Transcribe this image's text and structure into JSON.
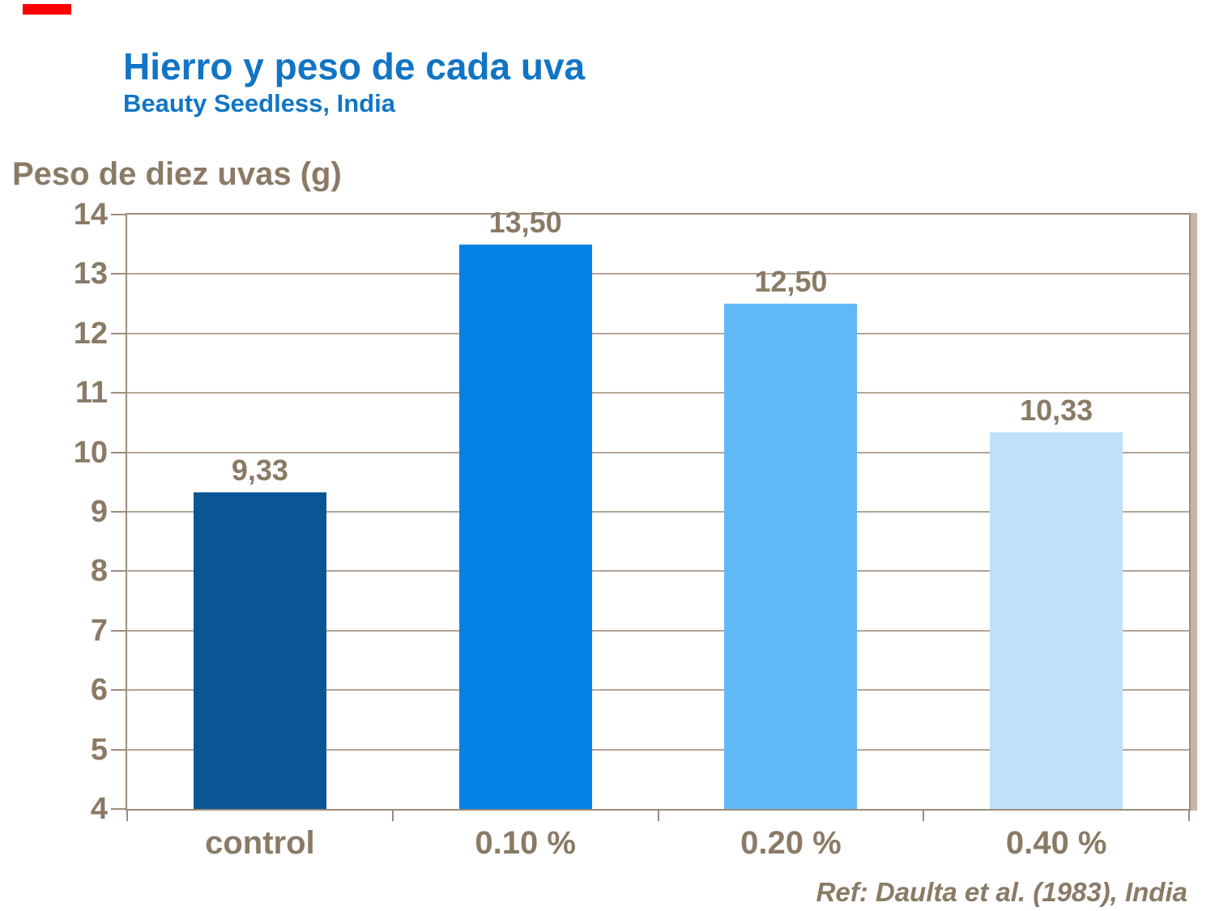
{
  "header": {
    "title": "Hierro y peso de cada uva",
    "subtitle": "Beauty Seedless, India"
  },
  "footer": {
    "reference": "Ref: Daulta et al. (1983), India"
  },
  "colors": {
    "title_blue": "#1175c5",
    "text_brown": "#8a7a66",
    "frame_tan": "#9c8d7b",
    "gridline_tan": "#b3a595",
    "shadow_tan": "#c4b7a9",
    "accent_red": "#ff0000"
  },
  "chart_data": {
    "type": "bar",
    "title": "Hierro y peso de cada uva",
    "subtitle": "Beauty Seedless, India",
    "ylabel": "Peso de diez uvas (g)",
    "xlabel": "",
    "categories": [
      "control",
      "0.10 %",
      "0.20 %",
      "0.40 %"
    ],
    "values": [
      9.33,
      13.5,
      12.5,
      10.33
    ],
    "value_labels": [
      "9,33",
      "13,50",
      "12,50",
      "10,33"
    ],
    "bar_colors": [
      "#0a5695",
      "#0682e4",
      "#60b8f6",
      "#bfe0fa"
    ],
    "ylim": [
      4,
      14
    ],
    "yticks": [
      4,
      5,
      6,
      7,
      8,
      9,
      10,
      11,
      12,
      13,
      14
    ],
    "grid": true,
    "legend": false,
    "annotation": "Ref: Daulta et al. (1983), India"
  }
}
